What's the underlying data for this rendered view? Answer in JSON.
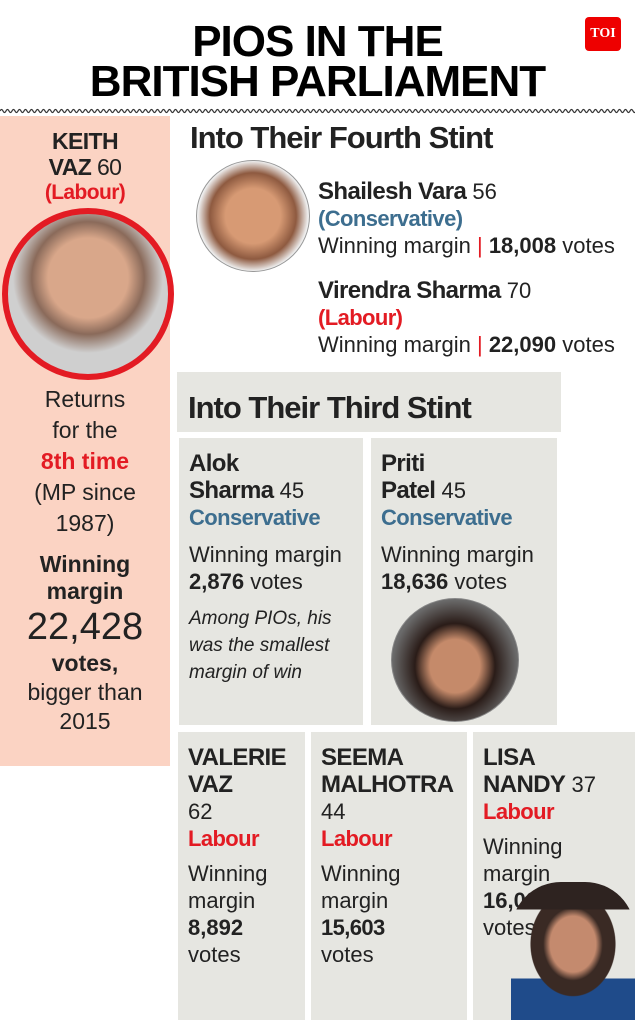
{
  "title": {
    "line1": "PIOS IN THE",
    "line2": "BRITISH PARLIAMENT",
    "logo": "TOI",
    "logo_color": "#e00000"
  },
  "keith": {
    "name1": "KEITH",
    "name2": "VAZ",
    "age": "60",
    "party": "(Labour)",
    "returns1": "Returns",
    "returns2": "for the",
    "times": "8th time",
    "since1": "(MP since",
    "since2": "1987)",
    "wm1": "Winning",
    "wm2": "margin",
    "margin": "22,428",
    "votes": "votes,",
    "bigger1": "bigger than",
    "bigger2": "2015"
  },
  "fourth": {
    "heading": "Into Their Fourth Stint",
    "people": [
      {
        "name": "Shailesh Vara",
        "age": "56",
        "party": "(Conservative)",
        "label": "Winning margin",
        "sep": "|",
        "margin": "18,008",
        "votes": "votes"
      },
      {
        "name": "Virendra Sharma",
        "age": "70",
        "party": "(Labour)",
        "label": "Winning margin",
        "sep": "|",
        "margin": "22,090",
        "votes": "votes"
      }
    ]
  },
  "third": {
    "heading": "Into Their Third Stint",
    "people": [
      {
        "first": "Alok",
        "last": "Sharma",
        "age": "45",
        "party": "Conservative",
        "label": "Winning margin",
        "margin": "2,876",
        "votes": "votes",
        "note1": "Among PIOs, his",
        "note2": "was the smallest",
        "note3": "margin of win"
      },
      {
        "first": "Priti",
        "last": "Patel",
        "age": "45",
        "party": "Conservative",
        "label": "Winning margin",
        "margin": "18,636",
        "votes": "votes"
      }
    ]
  },
  "bottom": [
    {
      "first": "VALERIE",
      "last": "VAZ",
      "age": "62",
      "party": "Labour",
      "w": "Winning",
      "m": "margin",
      "margin": "8,892",
      "votes": "votes"
    },
    {
      "first": "SEEMA",
      "last": "MALHOTRA",
      "age": "44",
      "party": "Labour",
      "w": "Winning",
      "m": "margin",
      "margin": "15,603",
      "votes": "votes"
    },
    {
      "first": "LISA",
      "last": "NANDY",
      "age": "37",
      "party": "Labour",
      "w": "Winning",
      "m": "margin",
      "margin": "16,027",
      "votes": "votes"
    }
  ],
  "colors": {
    "labour": "#e31b23",
    "conservative": "#3d6e8f",
    "panel_pink": "#fbd3c3",
    "panel_gray": "#e6e6e1"
  }
}
